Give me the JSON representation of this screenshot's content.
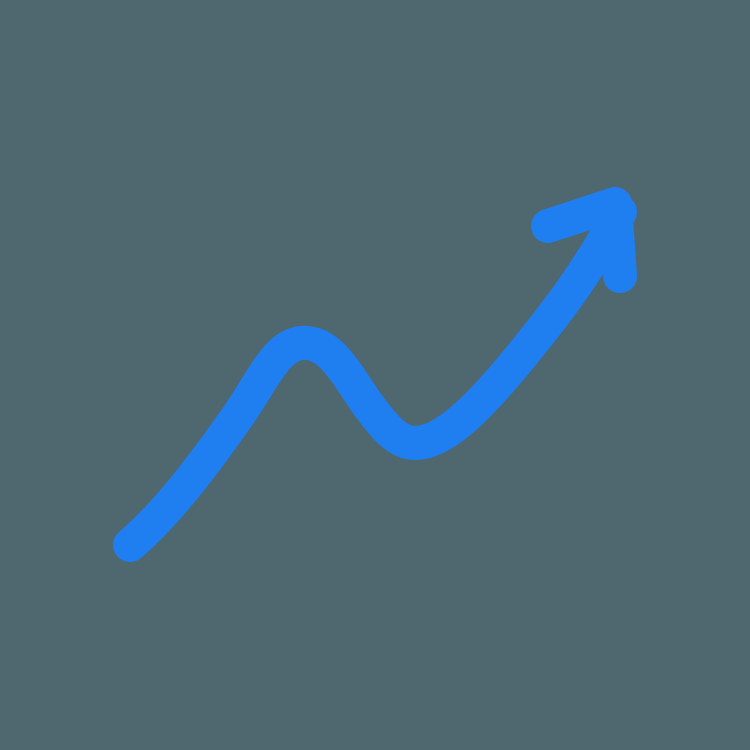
{
  "icon": {
    "name": "trending-up-arrow-icon",
    "color": "#1f7ef0"
  },
  "background": {
    "color": "#4f6870"
  }
}
